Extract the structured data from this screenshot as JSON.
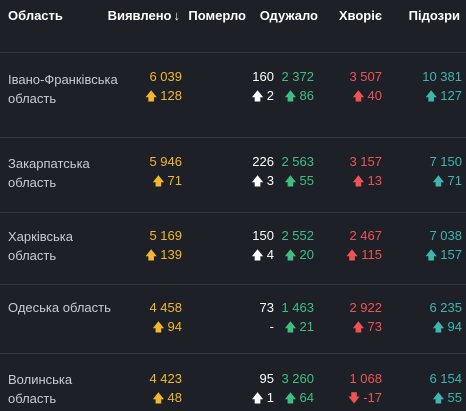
{
  "header": {
    "region": "Область",
    "detected": "Виявлено",
    "sort_icon": "↓",
    "deaths": "Померло",
    "recovered": "Одужало",
    "sick": "Хворіє",
    "suspected": "Підозри"
  },
  "arrows": {
    "up": "🡅",
    "down": "🡇"
  },
  "colors": {
    "background": "#1e2027",
    "detected": "#f3b72e",
    "deaths": "#ffffff",
    "recovered": "#3fbf7f",
    "sick": "#ee5353",
    "suspected": "#3db6b0"
  },
  "rows": [
    {
      "name": "Івано-Франківська область",
      "detected": "6 039",
      "detected_delta": "128",
      "deaths": "160",
      "deaths_delta": "2",
      "recovered": "2 372",
      "recovered_delta": "86",
      "sick": "3 507",
      "sick_delta": "40",
      "suspected": "10 381",
      "suspected_delta": "127"
    },
    {
      "name": "Закарпатська область",
      "detected": "5 946",
      "detected_delta": "71",
      "deaths": "226",
      "deaths_delta": "3",
      "recovered": "2 563",
      "recovered_delta": "55",
      "sick": "3 157",
      "sick_delta": "13",
      "suspected": "7 150",
      "suspected_delta": "71"
    },
    {
      "name": "Харківська область",
      "detected": "5 169",
      "detected_delta": "139",
      "deaths": "150",
      "deaths_delta": "4",
      "recovered": "2 552",
      "recovered_delta": "20",
      "sick": "2 467",
      "sick_delta": "115",
      "suspected": "7 038",
      "suspected_delta": "157"
    },
    {
      "name": "Одеська область",
      "detected": "4 458",
      "detected_delta": "94",
      "deaths": "73",
      "deaths_delta": "-",
      "recovered": "1 463",
      "recovered_delta": "21",
      "sick": "2 922",
      "sick_delta": "73",
      "suspected": "6 235",
      "suspected_delta": "94"
    },
    {
      "name": "Волинська область",
      "detected": "4 423",
      "detected_delta": "48",
      "deaths": "95",
      "deaths_delta": "1",
      "recovered": "3 260",
      "recovered_delta": "64",
      "sick": "1 068",
      "sick_delta": "-17",
      "suspected": "6 154",
      "suspected_delta": "55"
    }
  ]
}
